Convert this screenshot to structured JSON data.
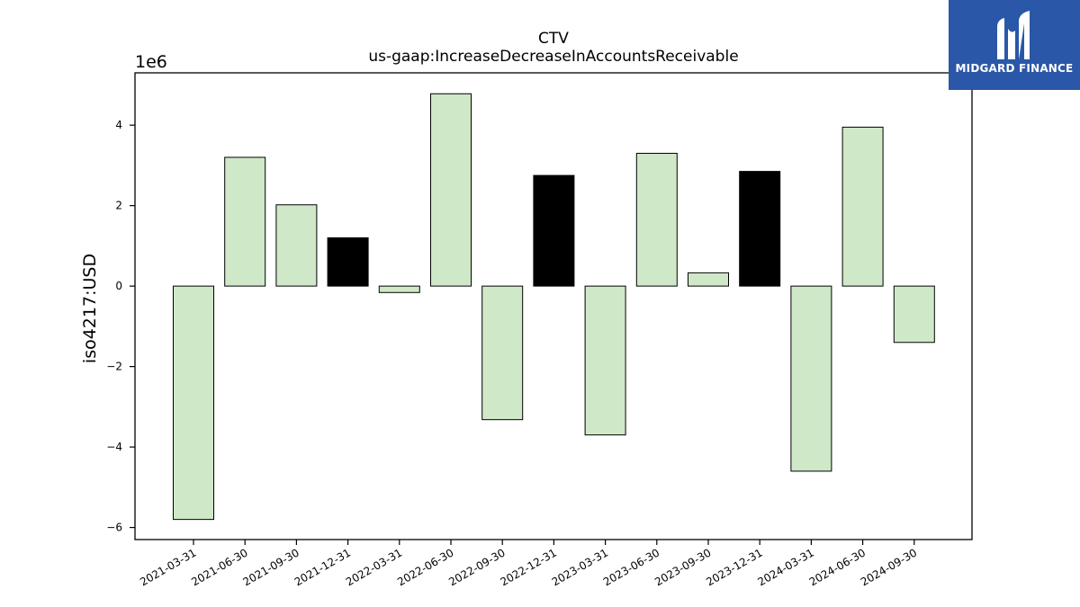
{
  "chart_data": {
    "type": "bar",
    "title": "CTV",
    "subtitle": "us-gaap:IncreaseDecreaseInAccountsReceivable",
    "ylabel": "iso4217:USD",
    "xlabel": "",
    "scale_label": "1e6",
    "ylim": [
      -6.3,
      5.3
    ],
    "yticks": [
      -6,
      -4,
      -2,
      0,
      2,
      4
    ],
    "ytick_labels": [
      "−6",
      "−4",
      "−2",
      "0",
      "2",
      "4"
    ],
    "grid": false,
    "categories": [
      "2021-03-31",
      "2021-06-30",
      "2021-09-30",
      "2021-12-31",
      "2022-03-31",
      "2022-06-30",
      "2022-09-30",
      "2022-12-31",
      "2023-03-31",
      "2023-06-30",
      "2023-09-30",
      "2023-12-31",
      "2024-03-31",
      "2024-06-30",
      "2024-09-30"
    ],
    "values": [
      -5.8,
      3.2,
      2.02,
      1.2,
      -0.16,
      4.78,
      -3.32,
      2.75,
      -3.7,
      3.3,
      0.33,
      2.85,
      -4.6,
      3.95,
      -1.4
    ],
    "highlighted": [
      false,
      false,
      false,
      true,
      false,
      false,
      false,
      true,
      false,
      false,
      false,
      true,
      false,
      false,
      false
    ],
    "colors": {
      "bar": "#cfe8c8",
      "highlight": "#000000",
      "edge": "#000000"
    }
  },
  "logo": {
    "text": "MIDGARD FINANCE",
    "bg": "#2b57a8"
  }
}
